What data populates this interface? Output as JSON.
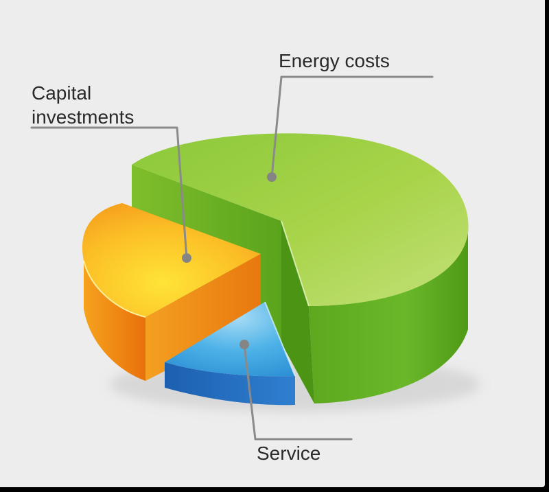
{
  "chart_data": {
    "type": "pie",
    "style": "3d-exploded",
    "categories": [
      "Energy costs",
      "Capital investments",
      "Service"
    ],
    "values": [
      64,
      25,
      11
    ],
    "colors": {
      "Energy costs": "#8cc63f",
      "Capital investments": "#f7a21b",
      "Service": "#3a9ad9"
    },
    "title": "",
    "legend": "none"
  }
}
